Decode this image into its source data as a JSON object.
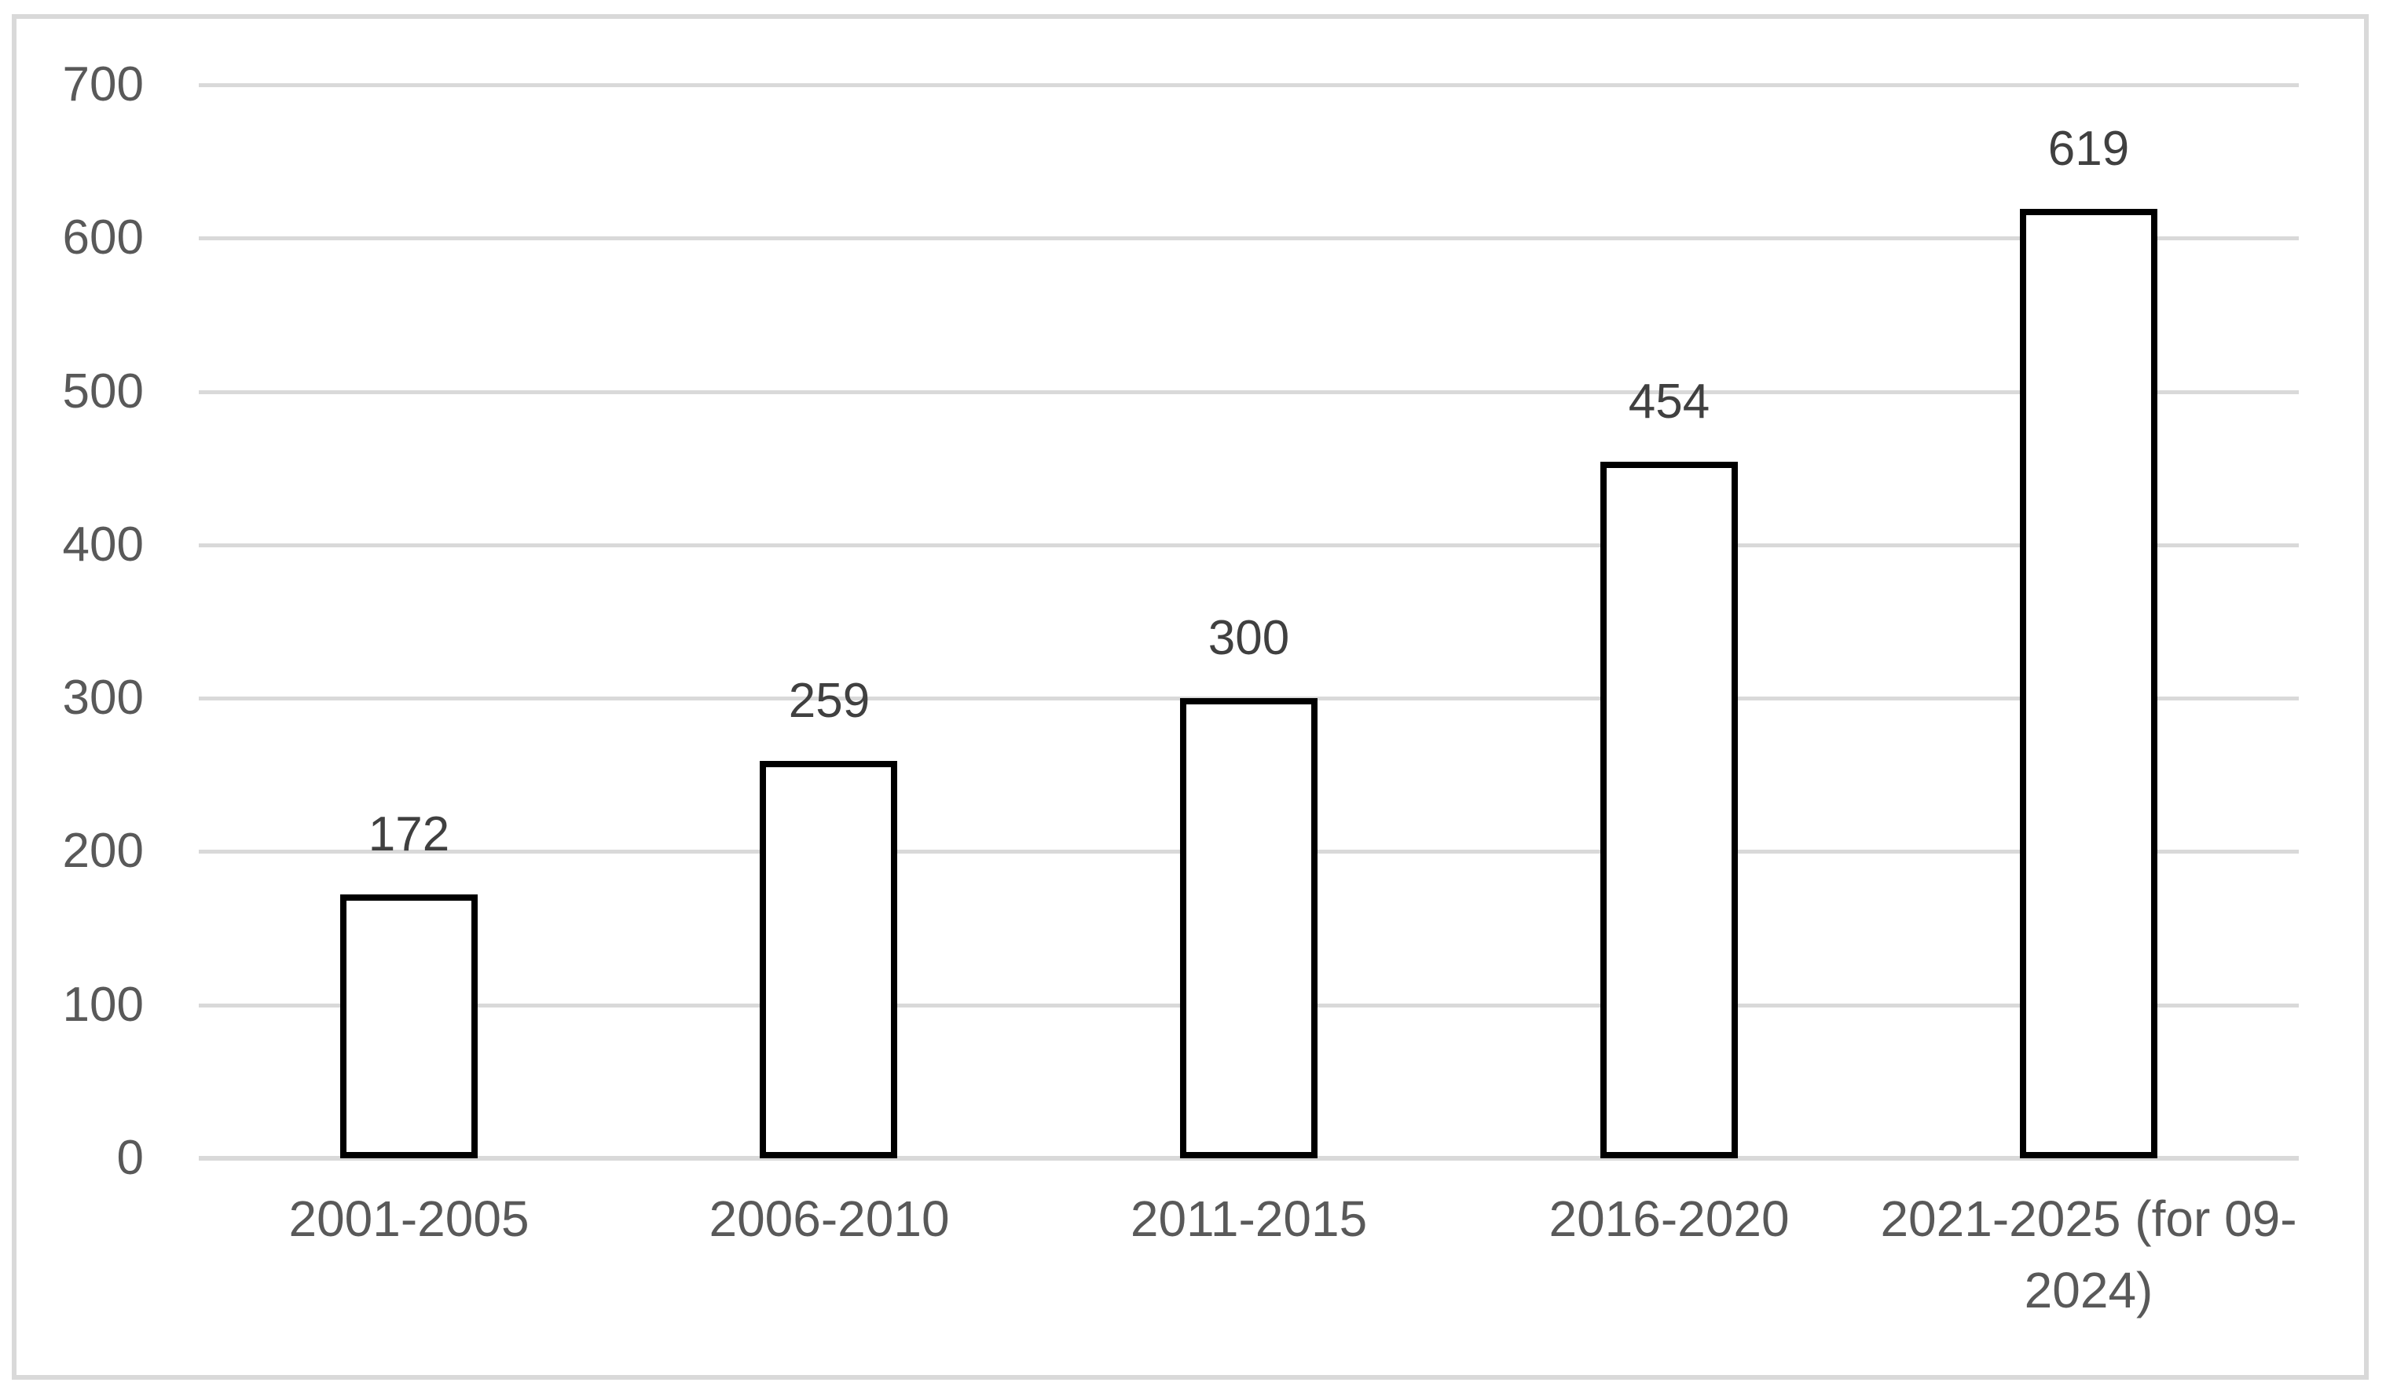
{
  "chart_data": {
    "type": "bar",
    "title": "",
    "categories": [
      "2001-2005",
      "2006-2010",
      "2011-2015",
      "2016-2020",
      "2021-2025 (for 09-2024)"
    ],
    "values": [
      172,
      259,
      300,
      454,
      619
    ],
    "data_labels": [
      "172",
      "259",
      "300",
      "454",
      "619"
    ],
    "yticks": [
      0,
      100,
      200,
      300,
      400,
      500,
      600,
      700
    ],
    "ytick_labels": [
      "0",
      "100",
      "200",
      "300",
      "400",
      "500",
      "600",
      "700"
    ],
    "ylim": [
      0,
      700
    ],
    "xlabel": "",
    "ylabel": "",
    "grid": true,
    "legend": false,
    "colors": {
      "bar_fill": "#ffffff",
      "bar_border": "#000000",
      "gridline": "#d9d9d9",
      "frame_border": "#d9d9d9",
      "axis_text": "#595959",
      "value_text": "#404040",
      "background": "#ffffff"
    }
  }
}
